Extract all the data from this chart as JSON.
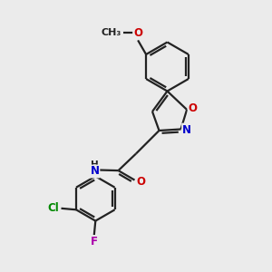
{
  "bg_color": "#ebebeb",
  "bond_color": "#222222",
  "line_width": 1.6,
  "atom_colors": {
    "O": "#cc0000",
    "N": "#0000cc",
    "Cl": "#008800",
    "F": "#aa00aa"
  },
  "font_size": 8.5,
  "fig_width": 3.0,
  "fig_height": 3.0,
  "dpi": 100
}
